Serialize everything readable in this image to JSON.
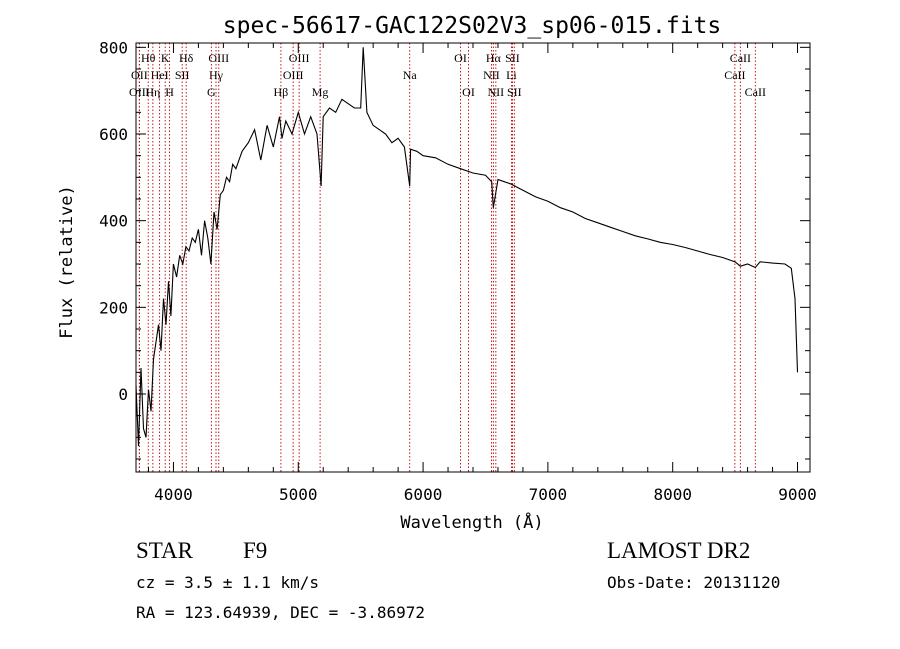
{
  "chart_data": {
    "type": "line",
    "title": "spec-56617-GAC122S02V3_sp06-015.fits",
    "xlabel": "Wavelength (Å)",
    "ylabel": "Flux (relative)",
    "xlim": [
      3700,
      9100
    ],
    "ylim": [
      -180,
      810
    ],
    "xticks": [
      4000,
      5000,
      6000,
      7000,
      8000,
      9000
    ],
    "yticks": [
      0,
      200,
      400,
      600,
      800
    ],
    "grid": false,
    "line_color": "#000000",
    "marker_color": "#c00000",
    "series": [
      {
        "values_x": [
          3700,
          3720,
          3740,
          3760,
          3780,
          3800,
          3820,
          3840,
          3860,
          3880,
          3900,
          3920,
          3940,
          3960,
          3980,
          4000,
          4025,
          4050,
          4075,
          4100,
          4125,
          4150,
          4175,
          4200,
          4225,
          4250,
          4275,
          4300,
          4325,
          4350,
          4375,
          4400,
          4425,
          4450,
          4475,
          4500,
          4550,
          4600,
          4650,
          4700,
          4750,
          4800,
          4850,
          4870,
          4900,
          4950,
          5000,
          5050,
          5100,
          5150,
          5183,
          5200,
          5250,
          5300,
          5350,
          5400,
          5450,
          5500,
          5520,
          5550,
          5600,
          5650,
          5700,
          5750,
          5800,
          5850,
          5893,
          5900,
          5950,
          6000,
          6100,
          6200,
          6300,
          6400,
          6500,
          6550,
          6563,
          6600,
          6650,
          6700,
          6800,
          6900,
          7000,
          7100,
          7200,
          7300,
          7400,
          7500,
          7600,
          7700,
          7800,
          7900,
          8000,
          8100,
          8200,
          8300,
          8400,
          8500,
          8542,
          8600,
          8662,
          8700,
          8800,
          8900,
          8950,
          8980,
          9000
        ],
        "values_y": [
          20,
          -120,
          60,
          -80,
          -100,
          10,
          -40,
          80,
          120,
          160,
          100,
          220,
          160,
          260,
          180,
          300,
          270,
          320,
          300,
          340,
          330,
          360,
          350,
          380,
          320,
          400,
          360,
          300,
          420,
          380,
          460,
          470,
          500,
          490,
          530,
          520,
          560,
          580,
          610,
          540,
          620,
          570,
          640,
          590,
          630,
          600,
          650,
          600,
          640,
          600,
          480,
          640,
          660,
          650,
          680,
          670,
          660,
          660,
          800,
          650,
          620,
          610,
          600,
          580,
          590,
          570,
          480,
          565,
          560,
          550,
          545,
          530,
          520,
          510,
          505,
          490,
          430,
          495,
          490,
          485,
          470,
          455,
          445,
          430,
          420,
          405,
          395,
          385,
          375,
          365,
          358,
          350,
          345,
          338,
          330,
          322,
          315,
          305,
          295,
          300,
          292,
          305,
          302,
          300,
          290,
          220,
          50
        ]
      }
    ],
    "spectral_lines": [
      {
        "label": "Hθ",
        "wl": 3798,
        "row": 1
      },
      {
        "label": "OII",
        "wl": 3727,
        "row": 2
      },
      {
        "label": "OIII",
        "wl": 3727,
        "row": 3
      },
      {
        "label": "HeI",
        "wl": 3889,
        "row": 2
      },
      {
        "label": "Hη",
        "wl": 3835,
        "row": 3
      },
      {
        "label": "K",
        "wl": 3934,
        "row": 1
      },
      {
        "label": "H",
        "wl": 3969,
        "row": 3
      },
      {
        "label": "SII",
        "wl": 4070,
        "row": 2
      },
      {
        "label": "Hδ",
        "wl": 4102,
        "row": 1
      },
      {
        "label": "OIII",
        "wl": 4363,
        "row": 1
      },
      {
        "label": "Hγ",
        "wl": 4341,
        "row": 2
      },
      {
        "label": "G",
        "wl": 4304,
        "row": 3
      },
      {
        "label": "Hβ",
        "wl": 4861,
        "row": 3
      },
      {
        "label": "OIII",
        "wl": 5007,
        "row": 1
      },
      {
        "label": "OIII",
        "wl": 4959,
        "row": 2
      },
      {
        "label": "Mg",
        "wl": 5175,
        "row": 3
      },
      {
        "label": "Na",
        "wl": 5893,
        "row": 2
      },
      {
        "label": "OI",
        "wl": 6300,
        "row": 1
      },
      {
        "label": "OI",
        "wl": 6364,
        "row": 3
      },
      {
        "label": "Hα",
        "wl": 6563,
        "row": 1
      },
      {
        "label": "SII",
        "wl": 6716,
        "row": 1
      },
      {
        "label": "NII",
        "wl": 6548,
        "row": 2
      },
      {
        "label": "Li",
        "wl": 6708,
        "row": 2
      },
      {
        "label": "NII",
        "wl": 6583,
        "row": 3
      },
      {
        "label": "SII",
        "wl": 6731,
        "row": 3
      },
      {
        "label": "CaII",
        "wl": 8542,
        "row": 1
      },
      {
        "label": "CaII",
        "wl": 8498,
        "row": 2
      },
      {
        "label": "CaII",
        "wl": 8662,
        "row": 3
      }
    ]
  },
  "info": {
    "object_class": "STAR",
    "subclass": "F9",
    "survey": "LAMOST DR2",
    "cz": "cz = 3.5 ± 1.1 km/s",
    "obs_date": "Obs-Date: 20131120",
    "coords": "RA = 123.64939, DEC =  -3.86972"
  }
}
